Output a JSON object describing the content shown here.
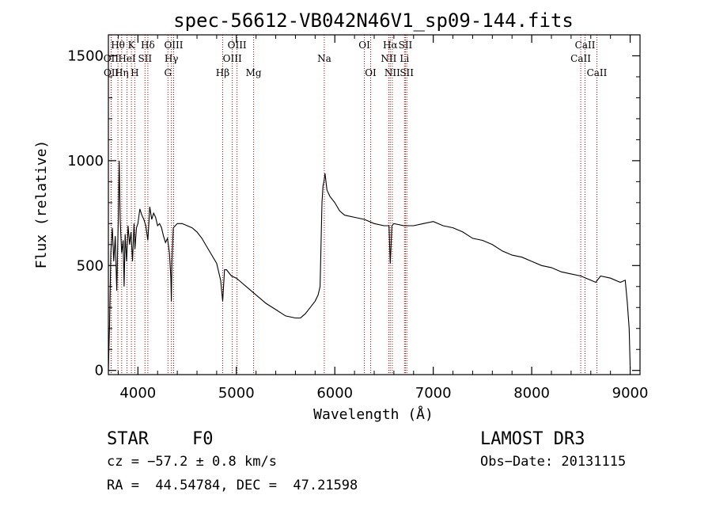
{
  "chart_data": {
    "type": "line",
    "title": "spec-56612-VB042N46V1_sp09-144.fits",
    "xlabel": "Wavelength (Å)",
    "ylabel": "Flux (relative)",
    "xlim": [
      3700,
      9100
    ],
    "ylim": [
      -20,
      1600
    ],
    "x_ticks": [
      4000,
      5000,
      6000,
      7000,
      8000,
      9000
    ],
    "y_ticks": [
      0,
      500,
      1000,
      1500
    ],
    "line_color": "#000000",
    "marker_color": "#b00000",
    "series": [
      {
        "name": "flux",
        "x": [
          3700,
          3712,
          3725,
          3740,
          3755,
          3770,
          3785,
          3800,
          3810,
          3820,
          3835,
          3850,
          3860,
          3870,
          3885,
          3900,
          3915,
          3930,
          3945,
          3960,
          3970,
          3985,
          4000,
          4020,
          4040,
          4060,
          4080,
          4101,
          4120,
          4140,
          4160,
          4180,
          4200,
          4220,
          4240,
          4260,
          4280,
          4300,
          4320,
          4335,
          4340,
          4345,
          4360,
          4380,
          4400,
          4450,
          4500,
          4550,
          4600,
          4650,
          4700,
          4750,
          4800,
          4820,
          4840,
          4861,
          4880,
          4900,
          4950,
          5000,
          5050,
          5100,
          5150,
          5200,
          5250,
          5300,
          5400,
          5500,
          5600,
          5650,
          5700,
          5750,
          5800,
          5830,
          5850,
          5860,
          5870,
          5880,
          5890,
          5900,
          5920,
          5950,
          6000,
          6050,
          6100,
          6200,
          6300,
          6400,
          6500,
          6550,
          6563,
          6580,
          6600,
          6700,
          6800,
          6900,
          7000,
          7100,
          7200,
          7300,
          7400,
          7500,
          7600,
          7700,
          7800,
          7900,
          8000,
          8100,
          8200,
          8300,
          8400,
          8500,
          8550,
          8600,
          8650,
          8700,
          8800,
          8900,
          8950,
          8970,
          8990,
          9000
        ],
        "y": [
          0,
          220,
          560,
          680,
          520,
          640,
          380,
          700,
          1000,
          720,
          560,
          620,
          400,
          650,
          520,
          690,
          600,
          660,
          520,
          700,
          580,
          680,
          700,
          770,
          740,
          720,
          690,
          620,
          780,
          720,
          750,
          730,
          690,
          700,
          680,
          640,
          610,
          630,
          560,
          440,
          330,
          520,
          680,
          690,
          700,
          700,
          690,
          680,
          660,
          630,
          590,
          550,
          510,
          470,
          430,
          330,
          480,
          480,
          450,
          440,
          420,
          400,
          380,
          360,
          340,
          320,
          290,
          260,
          250,
          250,
          270,
          300,
          330,
          360,
          400,
          600,
          800,
          880,
          900,
          940,
          860,
          830,
          800,
          760,
          740,
          730,
          720,
          700,
          690,
          690,
          510,
          690,
          700,
          690,
          690,
          700,
          710,
          690,
          680,
          660,
          630,
          620,
          600,
          570,
          550,
          540,
          520,
          500,
          490,
          470,
          460,
          450,
          440,
          430,
          420,
          450,
          440,
          420,
          430,
          330,
          200,
          10
        ]
      }
    ],
    "lines": [
      {
        "label": "Hθ",
        "x": 3797,
        "row": 1
      },
      {
        "label": "OII",
        "x": 3727,
        "row": 2
      },
      {
        "label": "OII",
        "x": 3729,
        "row": 3
      },
      {
        "label": "K",
        "x": 3934,
        "row": 1
      },
      {
        "label": "Hη",
        "x": 3835,
        "row": 3
      },
      {
        "label": "HeI",
        "x": 3889,
        "row": 2
      },
      {
        "label": "H",
        "x": 3968,
        "row": 3
      },
      {
        "label": "SII",
        "x": 4072,
        "row": 2
      },
      {
        "label": "Hδ",
        "x": 4101,
        "row": 1
      },
      {
        "label": "OIII",
        "x": 4363,
        "row": 1
      },
      {
        "label": "Hγ",
        "x": 4340,
        "row": 2
      },
      {
        "label": "G",
        "x": 4305,
        "row": 3
      },
      {
        "label": "Hβ",
        "x": 4861,
        "row": 3
      },
      {
        "label": "OIII",
        "x": 5007,
        "row": 1
      },
      {
        "label": "OIII",
        "x": 4959,
        "row": 2
      },
      {
        "label": "Mg",
        "x": 5175,
        "row": 3
      },
      {
        "label": "Na",
        "x": 5893,
        "row": 2
      },
      {
        "label": "OI",
        "x": 6300,
        "row": 1
      },
      {
        "label": "OI",
        "x": 6364,
        "row": 3
      },
      {
        "label": "Hα",
        "x": 6563,
        "row": 1
      },
      {
        "label": "NII",
        "x": 6548,
        "row": 2
      },
      {
        "label": "NII",
        "x": 6584,
        "row": 3
      },
      {
        "label": "SII",
        "x": 6717,
        "row": 1
      },
      {
        "label": "Li",
        "x": 6708,
        "row": 2
      },
      {
        "label": "SII",
        "x": 6731,
        "row": 3
      },
      {
        "label": "CaII",
        "x": 8542,
        "row": 1
      },
      {
        "label": "CaII",
        "x": 8498,
        "row": 2
      },
      {
        "label": "CaII",
        "x": 8662,
        "row": 3
      }
    ]
  },
  "info": {
    "class": "STAR",
    "subclass": "F0",
    "survey": "LAMOST DR3",
    "cz": "cz = −57.2 ± 0.8 km/s",
    "obs_date": "Obs−Date: 20131115",
    "coords": "RA =  44.54784, DEC =  47.21598"
  }
}
